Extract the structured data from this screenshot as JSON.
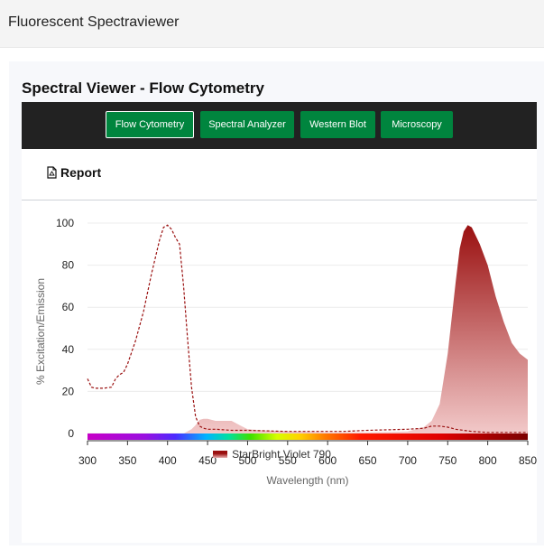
{
  "app": {
    "title": "Fluorescent Spectraviewer"
  },
  "card": {
    "title": "Spectral Viewer - Flow Cytometry"
  },
  "tabs": [
    {
      "label": "Flow Cytometry",
      "active": true
    },
    {
      "label": "Spectral Analyzer",
      "active": false
    },
    {
      "label": "Western Blot",
      "active": false
    },
    {
      "label": "Microscopy",
      "active": false
    }
  ],
  "toolbar": {
    "report_label": "Report",
    "report_icon": "pdf-file-icon"
  },
  "colors": {
    "tab_green": "#00853e",
    "tabbar_bg": "#222222",
    "series_dark": "#9a1010",
    "series_light": "#e9b0b0"
  },
  "chart_data": {
    "type": "area",
    "title": "",
    "xlabel": "Wavelength (nm)",
    "ylabel": "% Excitation/Emission",
    "xlim": [
      300,
      850
    ],
    "ylim": [
      0,
      100
    ],
    "xticks": [
      300,
      350,
      400,
      450,
      500,
      550,
      600,
      650,
      700,
      750,
      800,
      850
    ],
    "yticks": [
      0,
      20,
      40,
      60,
      80,
      100
    ],
    "grid": true,
    "legend": "bottom-center",
    "wavelength_color_bar": true,
    "series": [
      {
        "name": "StarBright Violet 790",
        "kind": "excitation",
        "style": "dashed-line",
        "x": [
          300,
          305,
          310,
          320,
          330,
          335,
          340,
          345,
          350,
          360,
          370,
          380,
          390,
          395,
          400,
          405,
          410,
          415,
          420,
          425,
          430,
          435,
          440,
          445,
          450,
          460,
          480,
          500,
          550,
          600,
          620,
          650,
          700,
          720,
          730,
          740,
          750,
          760,
          780,
          800,
          850
        ],
        "y": [
          26,
          22,
          21.5,
          21.5,
          22,
          26,
          28,
          29,
          33,
          44,
          58,
          76,
          92,
          98,
          99,
          97,
          93,
          90,
          70,
          45,
          22,
          8,
          3.5,
          2.5,
          2,
          2,
          1.5,
          1.5,
          1,
          1,
          1,
          1.5,
          2,
          2.5,
          3.5,
          3.5,
          3,
          2,
          1,
          0.5,
          0.5
        ]
      },
      {
        "name": "StarBright Violet 790",
        "kind": "emission",
        "style": "filled-area",
        "x": [
          420,
          430,
          435,
          440,
          445,
          450,
          460,
          470,
          480,
          490,
          500,
          520,
          550,
          600,
          650,
          700,
          710,
          720,
          730,
          740,
          750,
          755,
          760,
          765,
          770,
          775,
          780,
          790,
          800,
          810,
          820,
          830,
          840,
          850
        ],
        "y": [
          0,
          2,
          4,
          6.5,
          7,
          7,
          6,
          6,
          6,
          4,
          2,
          1.5,
          1,
          0.5,
          0.5,
          1,
          2,
          3,
          6,
          14,
          38,
          55,
          72,
          88,
          96,
          99,
          98,
          90,
          80,
          65,
          53,
          43,
          38,
          35
        ]
      }
    ]
  }
}
